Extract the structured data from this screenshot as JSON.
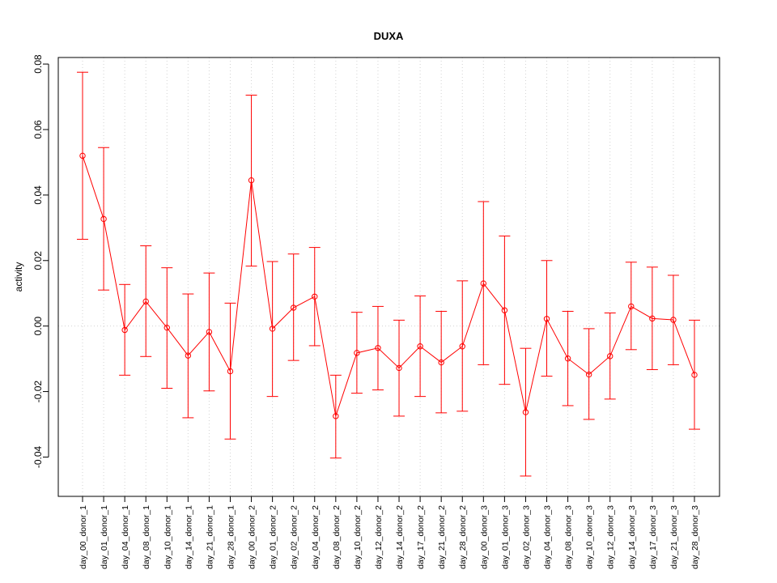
{
  "chart_data": {
    "type": "line",
    "title": "DUXA",
    "xlabel": "",
    "ylabel": "activity",
    "ylim": [
      -0.052,
      0.082
    ],
    "yticks": [
      -0.04,
      -0.02,
      0.0,
      0.02,
      0.04,
      0.06,
      0.08
    ],
    "ytick_labels": [
      "-0.04",
      "-0.02",
      "0.00",
      "0.02",
      "0.04",
      "0.06",
      "0.08"
    ],
    "grid": true,
    "categories": [
      "day_00_donor_1",
      "day_01_donor_1",
      "day_04_donor_1",
      "day_08_donor_1",
      "day_10_donor_1",
      "day_14_donor_1",
      "day_21_donor_1",
      "day_28_donor_1",
      "day_00_donor_2",
      "day_01_donor_2",
      "day_02_donor_2",
      "day_04_donor_2",
      "day_08_donor_2",
      "day_10_donor_2",
      "day_12_donor_2",
      "day_14_donor_2",
      "day_17_donor_2",
      "day_21_donor_2",
      "day_28_donor_2",
      "day_00_donor_3",
      "day_01_donor_3",
      "day_02_donor_3",
      "day_04_donor_3",
      "day_08_donor_3",
      "day_10_donor_3",
      "day_12_donor_3",
      "day_14_donor_3",
      "day_17_donor_3",
      "day_21_donor_3",
      "day_28_donor_3"
    ],
    "series": [
      {
        "color": "#ff0000",
        "values": [
          0.052,
          0.0327,
          -0.0012,
          0.0075,
          -0.0005,
          -0.009,
          -0.0018,
          -0.0138,
          0.0445,
          -0.0008,
          0.0056,
          0.009,
          -0.0275,
          -0.0082,
          -0.0067,
          -0.0128,
          -0.0062,
          -0.0111,
          -0.0062,
          0.013,
          0.0048,
          -0.0263,
          0.0022,
          -0.0099,
          -0.0148,
          -0.0092,
          0.006,
          0.0023,
          0.0019,
          -0.0149
        ],
        "upper": [
          0.0775,
          0.0545,
          0.0127,
          0.0245,
          0.0178,
          0.0098,
          0.0162,
          0.007,
          0.0705,
          0.0197,
          0.022,
          0.024,
          -0.015,
          0.0042,
          0.006,
          0.0018,
          0.0092,
          0.0045,
          0.0138,
          0.038,
          0.0275,
          -0.0068,
          0.02,
          0.0045,
          -0.0008,
          0.004,
          0.0195,
          0.018,
          0.0155,
          0.0018
        ],
        "lower": [
          0.0265,
          0.011,
          -0.015,
          -0.0093,
          -0.019,
          -0.028,
          -0.0198,
          -0.0345,
          0.0183,
          -0.0215,
          -0.0105,
          -0.006,
          -0.0403,
          -0.0205,
          -0.0195,
          -0.0275,
          -0.0215,
          -0.0265,
          -0.026,
          -0.0118,
          -0.0178,
          -0.0458,
          -0.0153,
          -0.0243,
          -0.0285,
          -0.0223,
          -0.0072,
          -0.0133,
          -0.0118,
          -0.0315
        ]
      }
    ]
  }
}
